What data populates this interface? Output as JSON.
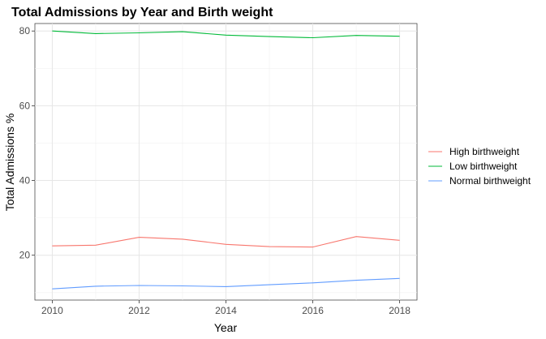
{
  "chart_data": {
    "type": "line",
    "title": "Total Admissions by Year and Birth weight",
    "xlabel": "Year",
    "ylabel": "Total Admissions %",
    "x": [
      2010,
      2011,
      2012,
      2013,
      2014,
      2015,
      2016,
      2017,
      2018
    ],
    "xlim": [
      2009.6,
      2018.4
    ],
    "ylim": [
      8.0,
      82.0
    ],
    "xticks": [
      2010,
      2012,
      2014,
      2016,
      2018
    ],
    "yticks": [
      20,
      40,
      60,
      80
    ],
    "grid": true,
    "legend_position": "right",
    "series": [
      {
        "name": "High birthweight",
        "color": "#F8766D",
        "values": [
          22.5,
          22.7,
          24.8,
          24.3,
          22.9,
          22.3,
          22.2,
          25.0,
          24.0
        ]
      },
      {
        "name": "Low birthweight",
        "color": "#00BA38",
        "values": [
          80.0,
          79.3,
          79.5,
          79.8,
          78.9,
          78.5,
          78.2,
          78.8,
          78.6
        ]
      },
      {
        "name": "Normal birthweight",
        "color": "#619CFF",
        "values": [
          11.0,
          11.7,
          11.9,
          11.8,
          11.6,
          12.1,
          12.6,
          13.3,
          13.8
        ]
      }
    ]
  }
}
